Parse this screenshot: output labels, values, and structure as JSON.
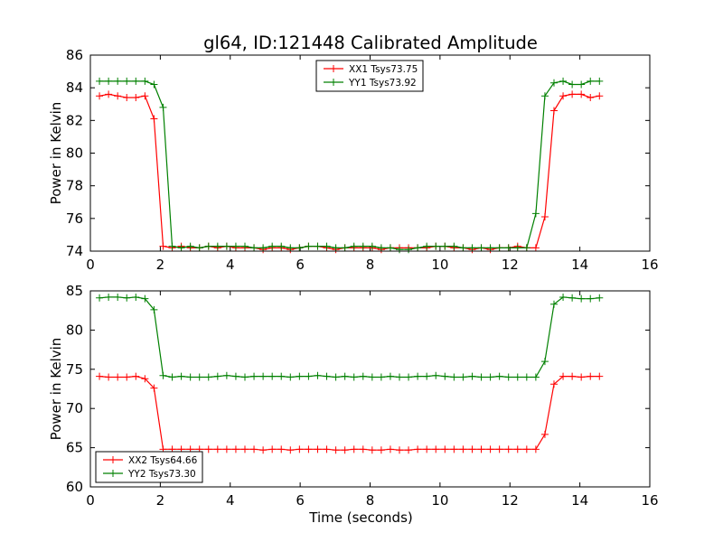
{
  "figure": {
    "title": "gl64, ID:121448 Calibrated Amplitude"
  },
  "chart_data": [
    {
      "type": "line",
      "title": "gl64, ID:121448 Calibrated Amplitude",
      "xlabel": "",
      "ylabel": "Power in Kelvin",
      "xlim": [
        0,
        16
      ],
      "ylim": [
        74,
        86
      ],
      "xticks": [
        0,
        2,
        4,
        6,
        8,
        10,
        12,
        14,
        16
      ],
      "yticks": [
        74,
        76,
        78,
        80,
        82,
        84,
        86
      ],
      "grid": false,
      "legend_position": "upper-center",
      "x": [
        0.26,
        0.52,
        0.78,
        1.04,
        1.3,
        1.56,
        1.82,
        2.08,
        2.34,
        2.6,
        2.86,
        3.12,
        3.38,
        3.64,
        3.9,
        4.16,
        4.42,
        4.68,
        4.94,
        5.2,
        5.46,
        5.72,
        5.98,
        6.24,
        6.5,
        6.76,
        7.02,
        7.28,
        7.54,
        7.8,
        8.06,
        8.32,
        8.58,
        8.84,
        9.1,
        9.36,
        9.62,
        9.88,
        10.14,
        10.4,
        10.66,
        10.92,
        11.18,
        11.44,
        11.7,
        11.96,
        12.22,
        12.48,
        12.74,
        13.0,
        13.26,
        13.52,
        13.78,
        14.04,
        14.3,
        14.56
      ],
      "series": [
        {
          "name": "XX1 Tsys73.75",
          "color": "#ff0000",
          "values": [
            83.5,
            83.6,
            83.5,
            83.4,
            83.4,
            83.5,
            82.1,
            74.3,
            74.2,
            74.3,
            74.2,
            74.2,
            74.3,
            74.2,
            74.3,
            74.2,
            74.2,
            74.2,
            74.1,
            74.2,
            74.2,
            74.1,
            74.2,
            74.3,
            74.3,
            74.2,
            74.1,
            74.2,
            74.2,
            74.2,
            74.2,
            74.1,
            74.2,
            74.2,
            74.2,
            74.2,
            74.2,
            74.3,
            74.3,
            74.2,
            74.2,
            74.1,
            74.2,
            74.1,
            74.2,
            74.2,
            74.3,
            74.2,
            74.2,
            76.1,
            82.6,
            83.5,
            83.6,
            83.6,
            83.4,
            83.5
          ]
        },
        {
          "name": "YY1 Tsys73.92",
          "color": "#008000",
          "values": [
            84.4,
            84.4,
            84.4,
            84.4,
            84.4,
            84.4,
            84.2,
            82.8,
            74.3,
            74.2,
            74.3,
            74.2,
            74.3,
            74.3,
            74.3,
            74.3,
            74.3,
            74.2,
            74.2,
            74.3,
            74.3,
            74.2,
            74.2,
            74.3,
            74.3,
            74.3,
            74.2,
            74.2,
            74.3,
            74.3,
            74.3,
            74.2,
            74.2,
            74.1,
            74.1,
            74.2,
            74.3,
            74.3,
            74.3,
            74.3,
            74.2,
            74.2,
            74.2,
            74.2,
            74.2,
            74.2,
            74.2,
            74.2,
            76.3,
            83.5,
            84.3,
            84.4,
            84.2,
            84.2,
            84.4,
            84.4
          ]
        }
      ]
    },
    {
      "type": "line",
      "title": "",
      "xlabel": "Time (seconds)",
      "ylabel": "Power in Kelvin",
      "xlim": [
        0,
        16
      ],
      "ylim": [
        60,
        85
      ],
      "xticks": [
        0,
        2,
        4,
        6,
        8,
        10,
        12,
        14,
        16
      ],
      "yticks": [
        60,
        65,
        70,
        75,
        80,
        85
      ],
      "grid": false,
      "legend_position": "lower-left",
      "x": [
        0.26,
        0.52,
        0.78,
        1.04,
        1.3,
        1.56,
        1.82,
        2.08,
        2.34,
        2.6,
        2.86,
        3.12,
        3.38,
        3.64,
        3.9,
        4.16,
        4.42,
        4.68,
        4.94,
        5.2,
        5.46,
        5.72,
        5.98,
        6.24,
        6.5,
        6.76,
        7.02,
        7.28,
        7.54,
        7.8,
        8.06,
        8.32,
        8.58,
        8.84,
        9.1,
        9.36,
        9.62,
        9.88,
        10.14,
        10.4,
        10.66,
        10.92,
        11.18,
        11.44,
        11.7,
        11.96,
        12.22,
        12.48,
        12.74,
        13.0,
        13.26,
        13.52,
        13.78,
        14.04,
        14.3,
        14.56
      ],
      "series": [
        {
          "name": "XX2 Tsys64.66",
          "color": "#ff0000",
          "values": [
            74.1,
            74.0,
            74.0,
            74.0,
            74.1,
            73.8,
            72.6,
            64.8,
            64.8,
            64.8,
            64.8,
            64.8,
            64.8,
            64.8,
            64.8,
            64.8,
            64.8,
            64.8,
            64.7,
            64.8,
            64.8,
            64.7,
            64.8,
            64.8,
            64.8,
            64.8,
            64.7,
            64.7,
            64.8,
            64.8,
            64.7,
            64.7,
            64.8,
            64.7,
            64.7,
            64.8,
            64.8,
            64.8,
            64.8,
            64.8,
            64.8,
            64.8,
            64.8,
            64.8,
            64.8,
            64.8,
            64.8,
            64.8,
            64.8,
            66.7,
            73.1,
            74.1,
            74.1,
            74.0,
            74.1,
            74.1
          ]
        },
        {
          "name": "YY2 Tsys73.30",
          "color": "#008000",
          "values": [
            84.1,
            84.2,
            84.2,
            84.1,
            84.2,
            84.0,
            82.6,
            74.2,
            74.0,
            74.1,
            74.0,
            74.0,
            74.0,
            74.1,
            74.2,
            74.1,
            74.0,
            74.1,
            74.1,
            74.1,
            74.1,
            74.0,
            74.1,
            74.1,
            74.2,
            74.1,
            74.0,
            74.1,
            74.0,
            74.1,
            74.0,
            74.0,
            74.1,
            74.0,
            74.0,
            74.1,
            74.1,
            74.2,
            74.1,
            74.0,
            74.0,
            74.1,
            74.0,
            74.0,
            74.1,
            74.0,
            74.0,
            74.0,
            74.0,
            76.0,
            83.3,
            84.2,
            84.1,
            84.0,
            84.0,
            84.1
          ]
        }
      ]
    }
  ]
}
